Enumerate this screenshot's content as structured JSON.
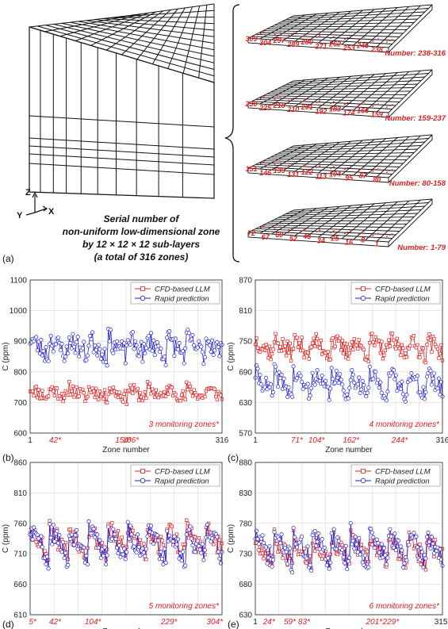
{
  "top": {
    "panel_label": "(a)",
    "caption": [
      "Serial number of",
      "non-uniform low-dimensional zone",
      "by 12 × 12 × 12 sub-layers",
      "(a total of 316 zones)"
    ],
    "axes": {
      "z": "Z",
      "y": "Y",
      "x": "X"
    },
    "layers": [
      {
        "range_label": "Number: 238-316",
        "labels": [
          "309",
          "304",
          "297",
          "289",
          "280",
          "271",
          "262",
          "253",
          "245",
          "238"
        ]
      },
      {
        "range_label": "Number: 159-237",
        "labels": [
          "230",
          "225",
          "218",
          "210",
          "201",
          "192",
          "183",
          "174",
          "166",
          "159"
        ]
      },
      {
        "range_label": "Number: 80-158",
        "labels": [
          "151",
          "146",
          "139",
          "131",
          "122",
          "113",
          "104",
          "95",
          "87",
          "80"
        ]
      },
      {
        "range_label": "Number: 1-79",
        "labels": [
          "72",
          "67",
          "60",
          "52",
          "43",
          "34",
          "25",
          "16",
          "8",
          "1"
        ]
      }
    ]
  },
  "colors": {
    "cfd": "#e02020",
    "rapid": "#1f1fd6",
    "grid": "#d9d9d9"
  },
  "chart_data": [
    {
      "type": "line",
      "panel_label": "(b)",
      "xlabel": "Zone number",
      "ylabel": "C (ppm)",
      "ylim": [
        600,
        1100
      ],
      "yticks": [
        600,
        700,
        800,
        900,
        1000,
        1100
      ],
      "xlim": [
        1,
        316
      ],
      "xtick_labels": [
        "1",
        "316"
      ],
      "monitor_ticks": [
        "42*",
        "154*",
        "166*"
      ],
      "monitor_x": [
        42,
        154,
        166
      ],
      "annotation": "3 monitoring zones*",
      "legend": [
        "CFD-based LLM",
        "Rapid prediction"
      ],
      "series": [
        {
          "name": "CFD-based LLM",
          "color": "#e02020",
          "marker": "square",
          "mean": 730,
          "amp": 22,
          "tooth": 35,
          "period": 16,
          "seed": 11
        },
        {
          "name": "Rapid prediction",
          "color": "#1f1fd6",
          "marker": "circle",
          "mean": 880,
          "amp": 35,
          "tooth": 60,
          "period": 16,
          "seed": 23
        }
      ]
    },
    {
      "type": "line",
      "panel_label": "(c)",
      "xlabel": "Zone number",
      "ylabel": "C (ppm)",
      "ylim": [
        570,
        870
      ],
      "yticks": [
        570,
        630,
        690,
        750,
        810,
        870
      ],
      "xlim": [
        1,
        316
      ],
      "xtick_labels": [
        "1",
        "316"
      ],
      "monitor_ticks": [
        "71*",
        "104*",
        "162*",
        "244*"
      ],
      "monitor_x": [
        71,
        104,
        162,
        244
      ],
      "annotation": "4 monitoring zones*",
      "legend": [
        "CFD-based LLM",
        "Rapid prediction"
      ],
      "series": [
        {
          "name": "CFD-based LLM",
          "color": "#e02020",
          "marker": "square",
          "mean": 738,
          "amp": 18,
          "tooth": 30,
          "period": 16,
          "seed": 37
        },
        {
          "name": "Rapid prediction",
          "color": "#1f1fd6",
          "marker": "circle",
          "mean": 665,
          "amp": 18,
          "tooth": 45,
          "period": 16,
          "seed": 41
        }
      ]
    },
    {
      "type": "line",
      "panel_label": "(d)",
      "xlabel": "Zone number",
      "ylabel": "C (ppm)",
      "ylim": [
        610,
        860
      ],
      "yticks": [
        610,
        660,
        710,
        760,
        810,
        860
      ],
      "xlim": [
        1,
        316
      ],
      "xtick_labels": [],
      "monitor_ticks": [
        "5*",
        "42*",
        "104*",
        "229*",
        "304*"
      ],
      "monitor_x": [
        5,
        42,
        104,
        229,
        304
      ],
      "annotation": "5 monitoring zones*",
      "legend": [
        "CFD-based LLM",
        "Rapid prediction"
      ],
      "series": [
        {
          "name": "CFD-based LLM",
          "color": "#e02020",
          "marker": "square",
          "mean": 730,
          "amp": 18,
          "tooth": 45,
          "period": 16,
          "seed": 53
        },
        {
          "name": "Rapid prediction",
          "color": "#1f1fd6",
          "marker": "circle",
          "mean": 725,
          "amp": 18,
          "tooth": 50,
          "period": 16,
          "seed": 59
        }
      ]
    },
    {
      "type": "line",
      "panel_label": "(e)",
      "xlabel": "Zone number",
      "ylabel": "C (ppm)",
      "ylim": [
        630,
        880
      ],
      "yticks": [
        630,
        680,
        730,
        780,
        830,
        880
      ],
      "xlim": [
        1,
        316
      ],
      "xtick_labels": [
        "1",
        "315*"
      ],
      "monitor_ticks": [
        "24*",
        "59*",
        "83*",
        "201*",
        "229*"
      ],
      "monitor_x": [
        24,
        59,
        83,
        201,
        229
      ],
      "annotation": "6 monitoring zones*",
      "legend": [
        "CFD-based LLM",
        "Rapid prediction"
      ],
      "series": [
        {
          "name": "CFD-based LLM",
          "color": "#e02020",
          "marker": "square",
          "mean": 735,
          "amp": 16,
          "tooth": 40,
          "period": 16,
          "seed": 67
        },
        {
          "name": "Rapid prediction",
          "color": "#1f1fd6",
          "marker": "circle",
          "mean": 738,
          "amp": 18,
          "tooth": 50,
          "period": 16,
          "seed": 71
        }
      ]
    }
  ]
}
